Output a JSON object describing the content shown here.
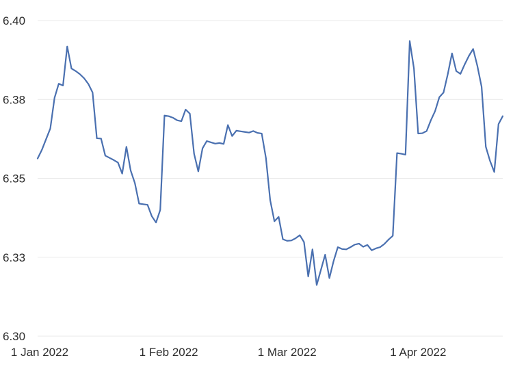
{
  "chart_data": {
    "type": "line",
    "title": "",
    "xlabel": "",
    "ylabel": "",
    "ylim": [
      6.3,
      6.4
    ],
    "yticks": [
      {
        "value": 6.3,
        "label": "6.30"
      },
      {
        "value": 6.325,
        "label": "6.33"
      },
      {
        "value": 6.35,
        "label": "6.35"
      },
      {
        "value": 6.375,
        "label": "6.38"
      },
      {
        "value": 6.4,
        "label": "6.40"
      }
    ],
    "xlim": [
      "2022-01-01",
      "2022-04-21"
    ],
    "xticks": [
      {
        "value": "2022-01-01",
        "label": "1 Jan 2022"
      },
      {
        "value": "2022-02-01",
        "label": "1 Feb 2022"
      },
      {
        "value": "2022-03-01",
        "label": "1 Mar 2022"
      },
      {
        "value": "2022-04-01",
        "label": "1 Apr 2022"
      }
    ],
    "grid": true,
    "line_color": "#4a70b0",
    "series": [
      {
        "x": [
          "2022-01-01",
          "2022-01-02",
          "2022-01-03",
          "2022-01-04",
          "2022-01-05",
          "2022-01-06",
          "2022-01-07",
          "2022-01-08",
          "2022-01-09",
          "2022-01-10",
          "2022-01-11",
          "2022-01-12",
          "2022-01-13",
          "2022-01-14",
          "2022-01-15",
          "2022-01-16",
          "2022-01-17",
          "2022-01-18",
          "2022-01-19",
          "2022-01-20",
          "2022-01-21",
          "2022-01-22",
          "2022-01-23",
          "2022-01-24",
          "2022-01-25",
          "2022-01-26",
          "2022-01-27",
          "2022-01-28",
          "2022-01-29",
          "2022-01-30",
          "2022-01-31",
          "2022-02-01",
          "2022-02-02",
          "2022-02-03",
          "2022-02-04",
          "2022-02-05",
          "2022-02-06",
          "2022-02-07",
          "2022-02-08",
          "2022-02-09",
          "2022-02-10",
          "2022-02-11",
          "2022-02-12",
          "2022-02-13",
          "2022-02-14",
          "2022-02-15",
          "2022-02-16",
          "2022-02-17",
          "2022-02-18",
          "2022-02-19",
          "2022-02-20",
          "2022-02-21",
          "2022-02-22",
          "2022-02-23",
          "2022-02-24",
          "2022-02-25",
          "2022-02-26",
          "2022-02-27",
          "2022-02-28",
          "2022-03-01",
          "2022-03-02",
          "2022-03-03",
          "2022-03-04",
          "2022-03-05",
          "2022-03-06",
          "2022-03-07",
          "2022-03-08",
          "2022-03-09",
          "2022-03-10",
          "2022-03-11",
          "2022-03-12",
          "2022-03-13",
          "2022-03-14",
          "2022-03-15",
          "2022-03-16",
          "2022-03-17",
          "2022-03-18",
          "2022-03-19",
          "2022-03-20",
          "2022-03-21",
          "2022-03-22",
          "2022-03-23",
          "2022-03-24",
          "2022-03-25",
          "2022-03-26",
          "2022-03-27",
          "2022-03-28",
          "2022-03-29",
          "2022-03-30",
          "2022-03-31",
          "2022-04-01",
          "2022-04-02",
          "2022-04-03",
          "2022-04-04",
          "2022-04-05",
          "2022-04-06",
          "2022-04-07",
          "2022-04-08",
          "2022-04-09",
          "2022-04-10",
          "2022-04-11",
          "2022-04-12",
          "2022-04-13",
          "2022-04-14",
          "2022-04-15",
          "2022-04-16",
          "2022-04-17",
          "2022-04-18",
          "2022-04-19",
          "2022-04-20",
          "2022-04-21"
        ],
        "values": [
          6.3563,
          6.359,
          6.3624,
          6.3658,
          6.3755,
          6.38,
          6.3794,
          6.3918,
          6.3848,
          6.384,
          6.383,
          6.3817,
          6.3799,
          6.3772,
          6.3627,
          6.3626,
          6.3572,
          6.3565,
          6.3558,
          6.355,
          6.3515,
          6.36,
          6.3525,
          6.3485,
          6.342,
          6.3418,
          6.3416,
          6.338,
          6.336,
          6.34,
          6.3699,
          6.3697,
          6.3692,
          6.3684,
          6.3681,
          6.3718,
          6.3705,
          6.3578,
          6.3522,
          6.3595,
          6.3618,
          6.3614,
          6.361,
          6.3612,
          6.3609,
          6.3669,
          6.3634,
          6.3651,
          6.3649,
          6.3647,
          6.3645,
          6.365,
          6.3644,
          6.3642,
          6.3564,
          6.3431,
          6.3364,
          6.3378,
          6.3307,
          6.3302,
          6.3303,
          6.331,
          6.332,
          6.3298,
          6.3189,
          6.3275,
          6.3162,
          6.321,
          6.3258,
          6.3184,
          6.3238,
          6.3282,
          6.3276,
          6.3275,
          6.3282,
          6.329,
          6.3293,
          6.3283,
          6.3289,
          6.3272,
          6.3278,
          6.3282,
          6.3292,
          6.3306,
          6.3318,
          6.358,
          6.3578,
          6.3575,
          6.3935,
          6.3848,
          6.3642,
          6.3643,
          6.365,
          6.3684,
          6.3713,
          6.3757,
          6.3772,
          6.383,
          6.3896,
          6.384,
          6.3831,
          6.3861,
          6.3888,
          6.391,
          6.3856,
          6.379,
          6.36,
          6.3555,
          6.352,
          6.3672,
          6.3697
        ]
      }
    ]
  }
}
